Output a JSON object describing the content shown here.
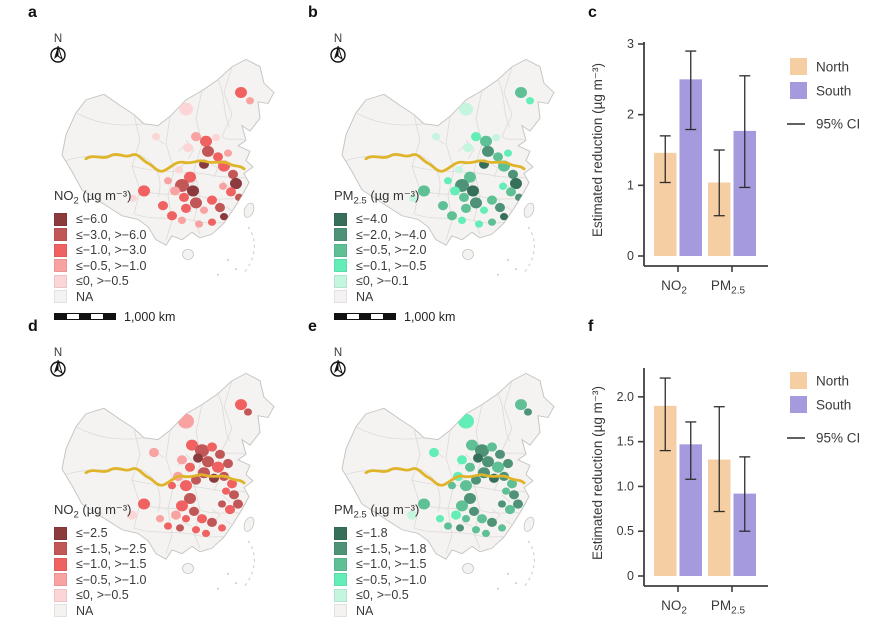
{
  "panel_labels": {
    "a": "a",
    "b": "b",
    "c": "c",
    "d": "d",
    "e": "e",
    "f": "f"
  },
  "map_common": {
    "north_label": "N",
    "scale_label": "1,000 km"
  },
  "map_style": {
    "base_fill": "#f4f3f1",
    "border": "#dbdad7",
    "outline": "#c6c5c2",
    "divide_line": "#e0b42a",
    "sea_dash": "#c3ccd2"
  },
  "map_panels": {
    "a": {
      "legend_title_base": "NO",
      "legend_title_sub": "2",
      "legend_title_unit": " (µg m⁻³)",
      "classes": [
        {
          "label": "≤−6.0",
          "color": "#8b3a3e"
        },
        {
          "label": "≤−3.0, >−6.0",
          "color": "#c25757"
        },
        {
          "label": "≤−1.0, >−3.0",
          "color": "#f06161"
        },
        {
          "label": "≤−0.5, >−1.0",
          "color": "#f9a2a2"
        },
        {
          "label": "≤0, >−0.5",
          "color": "#fcd6d6"
        },
        {
          "label": "NA",
          "color": "#f4f3f1"
        }
      ]
    },
    "b": {
      "legend_title_base": "PM",
      "legend_title_sub": "2.5",
      "legend_title_unit": " (µg m⁻³)",
      "classes": [
        {
          "label": "≤−4.0",
          "color": "#36705b"
        },
        {
          "label": "≤−2.0, >−4.0",
          "color": "#4e9378"
        },
        {
          "label": "≤−0.5, >−2.0",
          "color": "#5fc096"
        },
        {
          "label": "≤−0.1, >−0.5",
          "color": "#63edb7"
        },
        {
          "label": "≤0, >−0.1",
          "color": "#c4f5de"
        },
        {
          "label": "NA",
          "color": "#f4f3f1"
        }
      ]
    },
    "d": {
      "legend_title_base": "NO",
      "legend_title_sub": "2",
      "legend_title_unit": " (µg m⁻³)",
      "classes": [
        {
          "label": "≤−2.5",
          "color": "#8b3a3e"
        },
        {
          "label": "≤−1.5, >−2.5",
          "color": "#c25757"
        },
        {
          "label": "≤−1.0, >−1.5",
          "color": "#f06161"
        },
        {
          "label": "≤−0.5, >−1.0",
          "color": "#f9a2a2"
        },
        {
          "label": "≤0, >−0.5",
          "color": "#fcd6d6"
        },
        {
          "label": "NA",
          "color": "#f4f3f1"
        }
      ]
    },
    "e": {
      "legend_title_base": "PM",
      "legend_title_sub": "2.5",
      "legend_title_unit": " (µg m⁻³)",
      "classes": [
        {
          "label": "≤−1.8",
          "color": "#36705b"
        },
        {
          "label": "≤−1.5, >−1.8",
          "color": "#4e9378"
        },
        {
          "label": "≤−1.0, >−1.5",
          "color": "#5fc096"
        },
        {
          "label": "≤−0.5, >−1.0",
          "color": "#63edb7"
        },
        {
          "label": "≤0, >−0.5",
          "color": "#c4f5de"
        },
        {
          "label": "NA",
          "color": "#f4f3f1"
        }
      ]
    }
  },
  "chart_data": [
    {
      "id": "c",
      "type": "bar",
      "panel": "c",
      "ylabel": "Estimated reduction (µg m⁻³)",
      "categories": [
        {
          "base": "NO",
          "sub": "2"
        },
        {
          "base": "PM",
          "sub": "2.5"
        }
      ],
      "series": [
        {
          "name": "North",
          "color": "#f5cfa3",
          "values": [
            1.46,
            1.04
          ],
          "ci_low": [
            1.04,
            0.57
          ],
          "ci_high": [
            1.7,
            1.5
          ]
        },
        {
          "name": "South",
          "color": "#a69ade",
          "values": [
            2.5,
            1.77
          ],
          "ci_low": [
            1.79,
            0.97
          ],
          "ci_high": [
            2.9,
            2.55
          ]
        }
      ],
      "ylim": [
        0,
        3.0
      ],
      "yticks": [
        {
          "value": 0,
          "label": "0"
        },
        {
          "value": 1,
          "label": "1"
        },
        {
          "value": 2,
          "label": "2"
        },
        {
          "value": 3,
          "label": "3"
        }
      ],
      "legend": {
        "ci_label": "95% CI"
      },
      "grid": false,
      "legend_position": "right-top"
    },
    {
      "id": "f",
      "type": "bar",
      "panel": "f",
      "ylabel": "Estimated reduction (µg m⁻³)",
      "categories": [
        {
          "base": "NO",
          "sub": "2"
        },
        {
          "base": "PM",
          "sub": "2.5"
        }
      ],
      "series": [
        {
          "name": "North",
          "color": "#f5cfa3",
          "values": [
            1.9,
            1.3
          ],
          "ci_low": [
            1.4,
            0.72
          ],
          "ci_high": [
            2.21,
            1.89
          ]
        },
        {
          "name": "South",
          "color": "#a69ade",
          "values": [
            1.47,
            0.92
          ],
          "ci_low": [
            1.08,
            0.5
          ],
          "ci_high": [
            1.72,
            1.33
          ]
        }
      ],
      "ylim": [
        0,
        2.3
      ],
      "yticks": [
        {
          "value": 0,
          "label": "0"
        },
        {
          "value": 0.5,
          "label": "0.5"
        },
        {
          "value": 1,
          "label": "1.0"
        },
        {
          "value": 1.5,
          "label": "1.5"
        },
        {
          "value": 2,
          "label": "2.0"
        }
      ],
      "legend": {
        "ci_label": "95% CI"
      },
      "grid": false,
      "legend_position": "right-top"
    },
    {
      "id": "a",
      "type": "choropleth-map",
      "panel": "a",
      "variable": "NO₂ (µg m⁻³)",
      "class_breaks": [
        "≤−6.0",
        "≤−3.0, >−6.0",
        "≤−1.0, >−3.0",
        "≤−0.5, >−1.0",
        "≤0, >−0.5",
        "NA"
      ],
      "scale_bar": "1,000 km"
    },
    {
      "id": "b",
      "type": "choropleth-map",
      "panel": "b",
      "variable": "PM₂.₅ (µg m⁻³)",
      "class_breaks": [
        "≤−4.0",
        "≤−2.0, >−4.0",
        "≤−0.5, >−2.0",
        "≤−0.1, >−0.5",
        "≤0, >−0.1",
        "NA"
      ],
      "scale_bar": "1,000 km"
    },
    {
      "id": "d",
      "type": "choropleth-map",
      "panel": "d",
      "variable": "NO₂ (µg m⁻³)",
      "class_breaks": [
        "≤−2.5",
        "≤−1.5, >−2.5",
        "≤−1.0, >−1.5",
        "≤−0.5, >−1.0",
        "≤0, >−0.5",
        "NA"
      ],
      "scale_bar": "1,000 km"
    },
    {
      "id": "e",
      "type": "choropleth-map",
      "panel": "e",
      "variable": "PM₂.₅ (µg m⁻³)",
      "class_breaks": [
        "≤−1.8",
        "≤−1.5, >−1.8",
        "≤−1.0, >−1.5",
        "≤−0.5, >−1.0",
        "≤0, >−0.5",
        "NA"
      ],
      "scale_bar": "1,000 km"
    }
  ]
}
